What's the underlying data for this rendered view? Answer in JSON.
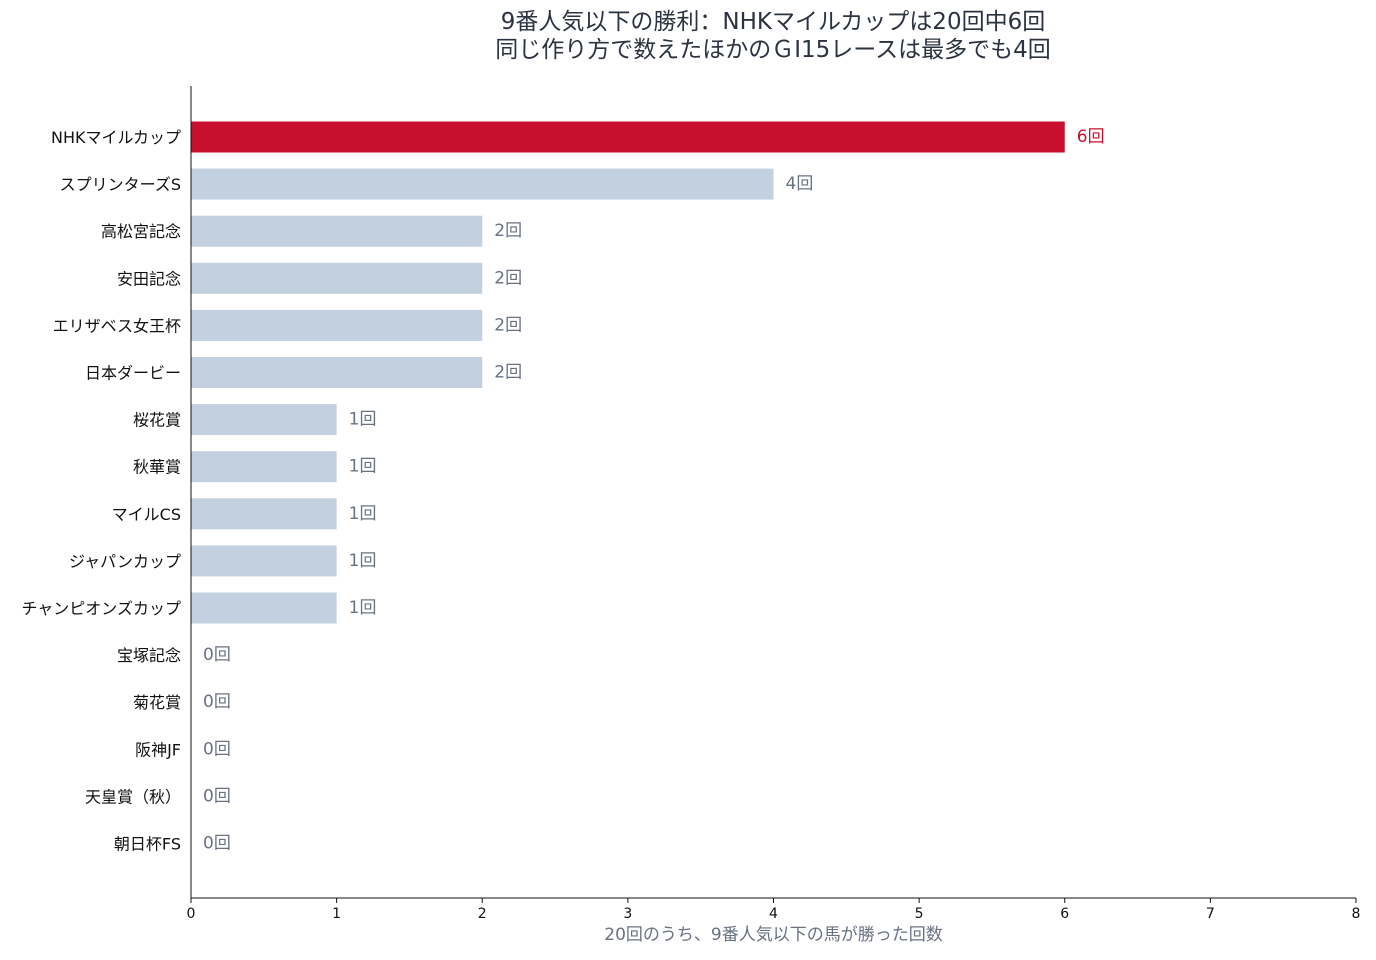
{
  "chart_data": {
    "type": "bar",
    "orientation": "horizontal",
    "title_lines": [
      "9番人気以下の勝利：NHKマイルカップは20回中6回",
      "同じ作り方で数えたほかのＧⅠ15レースは最多でも4回"
    ],
    "xlabel": "20回のうち、9番人気以下の馬が勝った回数",
    "ylabel": "",
    "xlim": [
      0,
      8
    ],
    "xticks": [
      "0",
      "1",
      "2",
      "3",
      "4",
      "5",
      "6",
      "7",
      "8"
    ],
    "categories": [
      "NHKマイルカップ",
      "スプリンターズS",
      "高松宮記念",
      "安田記念",
      "エリザベス女王杯",
      "日本ダービー",
      "桜花賞",
      "秋華賞",
      "マイルCS",
      "ジャパンカップ",
      "チャンピオンズカップ",
      "宝塚記念",
      "菊花賞",
      "阪神JF",
      "天皇賞（秋）",
      "朝日杯FS"
    ],
    "values": [
      6,
      4,
      2,
      2,
      2,
      2,
      1,
      1,
      1,
      1,
      1,
      0,
      0,
      0,
      0,
      0
    ],
    "value_labels": [
      "6回",
      "4回",
      "2回",
      "2回",
      "2回",
      "2回",
      "1回",
      "1回",
      "1回",
      "1回",
      "1回",
      "0回",
      "0回",
      "0回",
      "0回",
      "0回"
    ],
    "highlight_index": 0,
    "colors": {
      "highlight": "#c8102e",
      "bar": "#c3d0df",
      "label": "#6a7282",
      "axis": "#111111"
    },
    "grid": false,
    "legend": "none"
  }
}
